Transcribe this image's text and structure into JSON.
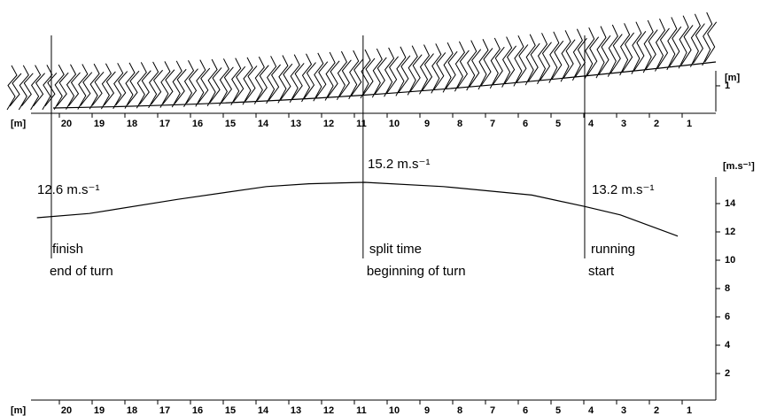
{
  "chart_data": [
    {
      "type": "stick_diagram",
      "x_axis_label": "[m]",
      "xlim": [
        21,
        0
      ],
      "xticks": [
        20,
        19,
        18,
        17,
        16,
        15,
        14,
        13,
        12,
        11,
        10,
        9,
        8,
        7,
        6,
        5,
        4,
        3,
        2,
        1
      ],
      "y_axis_label": "[m]",
      "ylim": [
        0,
        4.1
      ],
      "yticks": [
        1
      ]
    },
    {
      "type": "line",
      "x_axis_label": "[m]",
      "xlim": [
        21,
        0
      ],
      "xticks": [
        20,
        19,
        18,
        17,
        16,
        15,
        14,
        13,
        12,
        11,
        10,
        9,
        8,
        7,
        6,
        5,
        4,
        3,
        2,
        1
      ],
      "y_axis_label": "[m.s⁻¹]",
      "ylim": [
        0,
        16
      ],
      "yticks": [
        2,
        4,
        6,
        8,
        10,
        12,
        14
      ],
      "series": [
        {
          "color": "#000000",
          "x": [
            20.9,
            19.3,
            16.6,
            13.9,
            12.6,
            10.9,
            8.5,
            5.8,
            4.2,
            3.1,
            1.35
          ],
          "values": [
            13.0,
            13.3,
            14.3,
            15.2,
            15.4,
            15.5,
            15.2,
            14.6,
            13.8,
            13.2,
            11.7
          ]
        }
      ],
      "annotations": [
        "12.6 m.s⁻¹",
        "15.2 m.s⁻¹",
        "13.2 m.s⁻¹"
      ],
      "events": [
        {
          "x": 20.46,
          "lines": [
            "finish",
            "end of turn"
          ]
        },
        {
          "x": 10.95,
          "lines": [
            "split time",
            "beginning of turn"
          ]
        },
        {
          "x": 4.19,
          "lines": [
            "running",
            "start"
          ]
        }
      ]
    }
  ]
}
